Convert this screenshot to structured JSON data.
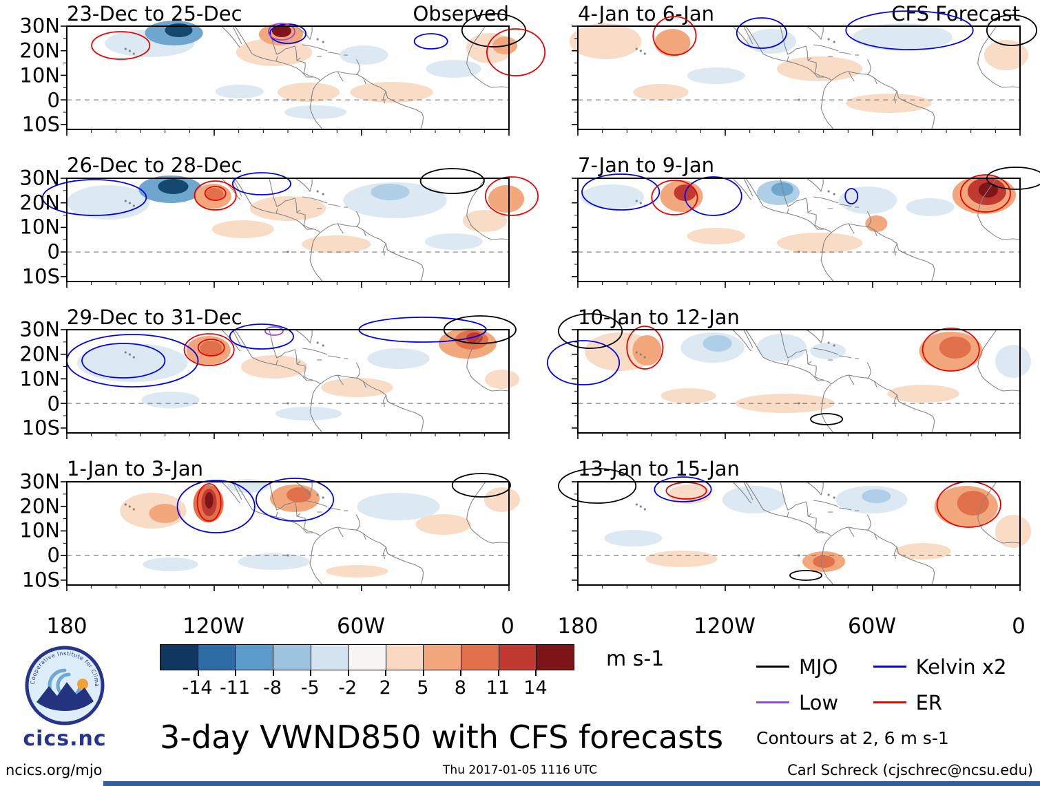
{
  "chart_data": {
    "type": "heatmap",
    "title": "3-day VWND850 with CFS forecasts",
    "units_label": "m s-1",
    "contours_note": "Contours at 2, 6 m s-1",
    "y_tick_labels": [
      "30N",
      "20N",
      "10N",
      "0",
      "10S"
    ],
    "x_tick_labels": [
      "180",
      "120W",
      "60W",
      "0"
    ],
    "palette": {
      "po": "#f8dcc6",
      "o": "#f2a87c",
      "mo": "#e0714b",
      "r": "#c03a31",
      "dr": "#7e1519",
      "pb": "#dce9f3",
      "lb": "#aecfe6",
      "mb": "#6ea6ce",
      "b": "#3c7cb0",
      "db": "#15486e"
    },
    "colorbar": {
      "tick_labels": [
        "-14",
        "-11",
        "-8",
        "-5",
        "-2",
        "2",
        "5",
        "8",
        "11",
        "14"
      ],
      "segment_colors": [
        "#10375f",
        "#2e6da4",
        "#5b9bc9",
        "#9cc4df",
        "#d4e5f1",
        "#f7f5f3",
        "#f9d9c1",
        "#f2a87c",
        "#e0714b",
        "#c03a31",
        "#7e1519"
      ]
    },
    "legend": [
      {
        "id": "mjo",
        "label": "MJO",
        "color": "#000000"
      },
      {
        "id": "low",
        "label": "Low",
        "color": "#9b45d6"
      },
      {
        "id": "kelvin",
        "label": "Kelvin x2",
        "color": "#0000ee"
      },
      {
        "id": "er",
        "label": "ER",
        "color": "#ee0000"
      }
    ],
    "panels": [
      {
        "label": "23-Dec to 25-Dec",
        "corner_label": "Observed",
        "blobs": [
          [
            120,
            25,
            65,
            20,
            "pb"
          ],
          [
            430,
            42,
            35,
            14,
            "pb"
          ],
          [
            250,
            95,
            35,
            10,
            "pb"
          ],
          [
            360,
            125,
            45,
            10,
            "pb"
          ],
          [
            560,
            62,
            40,
            13,
            "pb"
          ],
          [
            300,
            38,
            55,
            20,
            "po"
          ],
          [
            350,
            96,
            45,
            14,
            "po"
          ],
          [
            470,
            96,
            60,
            15,
            "po"
          ],
          [
            612,
            32,
            34,
            22,
            "po"
          ],
          [
            155,
            10,
            42,
            18,
            "mb"
          ],
          [
            162,
            6,
            20,
            10,
            "db"
          ],
          [
            310,
            12,
            32,
            16,
            "o"
          ],
          [
            634,
            28,
            18,
            13,
            "o"
          ],
          [
            311,
            7,
            14,
            9,
            "dr"
          ]
        ],
        "contours": [
          [
            78,
            28,
            42,
            20,
            "er"
          ],
          [
            320,
            11,
            26,
            14,
            "kelvin"
          ],
          [
            311,
            8,
            19,
            12,
            "low"
          ],
          [
            527,
            22,
            24,
            11,
            "kelvin"
          ],
          [
            618,
            6,
            46,
            24,
            "mjo"
          ],
          [
            650,
            38,
            42,
            34,
            "er"
          ]
        ]
      },
      {
        "label": "26-Dec to 28-Dec",
        "corner_label": "",
        "blobs": [
          [
            60,
            35,
            60,
            25,
            "pb"
          ],
          [
            475,
            32,
            75,
            26,
            "pb"
          ],
          [
            560,
            92,
            42,
            12,
            "pb"
          ],
          [
            320,
            44,
            55,
            18,
            "po"
          ],
          [
            255,
            74,
            45,
            13,
            "po"
          ],
          [
            605,
            62,
            32,
            16,
            "po"
          ],
          [
            390,
            96,
            50,
            13,
            "po"
          ],
          [
            150,
            16,
            46,
            20,
            "mb"
          ],
          [
            154,
            12,
            22,
            11,
            "db"
          ],
          [
            468,
            20,
            28,
            12,
            "lb"
          ],
          [
            212,
            26,
            26,
            18,
            "o"
          ],
          [
            636,
            30,
            26,
            20,
            "o"
          ],
          [
            214,
            23,
            13,
            9,
            "mo"
          ]
        ],
        "contours": [
          [
            40,
            28,
            75,
            26,
            "kelvin"
          ],
          [
            282,
            8,
            42,
            16,
            "kelvin"
          ],
          [
            215,
            25,
            30,
            21,
            "er"
          ],
          [
            215,
            22,
            15,
            10,
            "er"
          ],
          [
            558,
            4,
            46,
            18,
            "mjo"
          ],
          [
            644,
            26,
            38,
            28,
            "er"
          ]
        ]
      },
      {
        "label": "29-Dec to 31-Dec",
        "corner_label": "",
        "blobs": [
          [
            95,
            48,
            80,
            28,
            "pb"
          ],
          [
            480,
            42,
            45,
            15,
            "pb"
          ],
          [
            150,
            102,
            42,
            12,
            "pb"
          ],
          [
            350,
            122,
            48,
            10,
            "pb"
          ],
          [
            300,
            54,
            48,
            17,
            "po"
          ],
          [
            420,
            84,
            52,
            14,
            "po"
          ],
          [
            630,
            72,
            25,
            14,
            "po"
          ],
          [
            580,
            20,
            42,
            22,
            "o"
          ],
          [
            205,
            30,
            32,
            21,
            "o"
          ],
          [
            209,
            27,
            16,
            11,
            "mo"
          ],
          [
            586,
            15,
            24,
            14,
            "mo"
          ],
          [
            590,
            12,
            12,
            8,
            "r"
          ]
        ],
        "contours": [
          [
            95,
            45,
            95,
            38,
            "kelvin"
          ],
          [
            82,
            45,
            60,
            25,
            "kelvin"
          ],
          [
            282,
            10,
            46,
            18,
            "kelvin"
          ],
          [
            300,
            2,
            13,
            6,
            "low"
          ],
          [
            515,
            0,
            92,
            18,
            "kelvin"
          ],
          [
            206,
            29,
            36,
            23,
            "er"
          ],
          [
            209,
            26,
            19,
            12,
            "er"
          ],
          [
            598,
            0,
            52,
            20,
            "mjo"
          ]
        ]
      },
      {
        "label": "1-Jan to 3-Jan",
        "corner_label": "",
        "blobs": [
          [
            262,
            6,
            30,
            10,
            "pb"
          ],
          [
            480,
            36,
            60,
            20,
            "pb"
          ],
          [
            300,
            116,
            52,
            12,
            "pb"
          ],
          [
            150,
            120,
            40,
            10,
            "pb"
          ],
          [
            125,
            42,
            48,
            26,
            "po"
          ],
          [
            545,
            62,
            40,
            15,
            "po"
          ],
          [
            630,
            26,
            26,
            18,
            "po"
          ],
          [
            420,
            130,
            45,
            9,
            "po"
          ],
          [
            142,
            46,
            23,
            14,
            "o"
          ],
          [
            330,
            24,
            36,
            20,
            "o"
          ],
          [
            336,
            19,
            18,
            11,
            "mo"
          ],
          [
            205,
            32,
            22,
            27,
            "mo"
          ],
          [
            206,
            30,
            11,
            20,
            "r"
          ],
          [
            206,
            27,
            6,
            12,
            "dr"
          ]
        ],
        "contours": [
          [
            216,
            36,
            56,
            38,
            "kelvin"
          ],
          [
            330,
            26,
            56,
            31,
            "kelvin"
          ],
          [
            206,
            30,
            17,
            27,
            "er"
          ],
          [
            600,
            5,
            42,
            17,
            "mjo"
          ]
        ]
      },
      {
        "label": "4-Jan to 6-Jan",
        "corner_label": "CFS Forecast",
        "blobs": [
          [
            280,
            22,
            36,
            18,
            "pb"
          ],
          [
            470,
            16,
            72,
            20,
            "pb"
          ],
          [
            200,
            72,
            42,
            12,
            "pb"
          ],
          [
            40,
            22,
            52,
            26,
            "po"
          ],
          [
            620,
            42,
            32,
            22,
            "po"
          ],
          [
            350,
            62,
            62,
            18,
            "po"
          ],
          [
            450,
            112,
            62,
            14,
            "po"
          ],
          [
            120,
            96,
            40,
            12,
            "po"
          ],
          [
            137,
            24,
            26,
            20,
            "o"
          ]
        ],
        "contours": [
          [
            140,
            14,
            31,
            28,
            "er"
          ],
          [
            266,
            10,
            36,
            22,
            "kelvin"
          ],
          [
            480,
            6,
            92,
            28,
            "kelvin"
          ],
          [
            628,
            6,
            36,
            22,
            "mjo"
          ]
        ]
      },
      {
        "label": "7-Jan to 9-Jan",
        "corner_label": "",
        "blobs": [
          [
            50,
            27,
            46,
            18,
            "pb"
          ],
          [
            420,
            32,
            42,
            20,
            "pb"
          ],
          [
            510,
            42,
            35,
            13,
            "pb"
          ],
          [
            350,
            94,
            62,
            15,
            "po"
          ],
          [
            200,
            84,
            42,
            12,
            "po"
          ],
          [
            290,
            21,
            31,
            18,
            "lb"
          ],
          [
            296,
            16,
            16,
            10,
            "mb"
          ],
          [
            150,
            26,
            31,
            23,
            "o"
          ],
          [
            588,
            24,
            46,
            28,
            "o"
          ],
          [
            432,
            66,
            16,
            12,
            "o"
          ],
          [
            155,
            21,
            16,
            12,
            "r"
          ],
          [
            592,
            19,
            28,
            20,
            "r"
          ],
          [
            594,
            17,
            14,
            11,
            "dr"
          ]
        ],
        "contours": [
          [
            62,
            20,
            56,
            26,
            "kelvin"
          ],
          [
            196,
            26,
            41,
            28,
            "kelvin"
          ],
          [
            396,
            26,
            9,
            11,
            "kelvin"
          ],
          [
            140,
            28,
            33,
            25,
            "er"
          ],
          [
            590,
            22,
            36,
            27,
            "er"
          ],
          [
            634,
            0,
            42,
            16,
            "mjo"
          ]
        ]
      },
      {
        "label": "10-Jan to 12-Jan",
        "corner_label": "",
        "blobs": [
          [
            195,
            26,
            46,
            22,
            "pb"
          ],
          [
            295,
            26,
            36,
            20,
            "pb"
          ],
          [
            362,
            31,
            26,
            12,
            "pb"
          ],
          [
            630,
            46,
            26,
            24,
            "pb"
          ],
          [
            62,
            32,
            52,
            28,
            "po"
          ],
          [
            300,
            107,
            72,
            14,
            "po"
          ],
          [
            500,
            93,
            52,
            13,
            "po"
          ],
          [
            160,
            96,
            40,
            11,
            "po"
          ],
          [
            202,
            20,
            21,
            12,
            "lb"
          ],
          [
            100,
            30,
            21,
            22,
            "o"
          ],
          [
            540,
            31,
            46,
            28,
            "o"
          ],
          [
            546,
            26,
            23,
            16,
            "mo"
          ]
        ],
        "contours": [
          [
            18,
            2,
            46,
            25,
            "mjo"
          ],
          [
            8,
            48,
            52,
            32,
            "kelvin"
          ],
          [
            97,
            26,
            26,
            31,
            "er"
          ],
          [
            540,
            29,
            41,
            31,
            "er"
          ],
          [
            360,
            130,
            23,
            8,
            "mjo"
          ]
        ]
      },
      {
        "label": "13-Jan to 15-Jan",
        "corner_label": "",
        "blobs": [
          [
            255,
            26,
            46,
            20,
            "pb"
          ],
          [
            425,
            26,
            52,
            20,
            "pb"
          ],
          [
            80,
            82,
            42,
            12,
            "pb"
          ],
          [
            162,
            18,
            31,
            14,
            "po"
          ],
          [
            630,
            72,
            26,
            24,
            "po"
          ],
          [
            150,
            112,
            52,
            12,
            "po"
          ],
          [
            500,
            101,
            40,
            12,
            "po"
          ],
          [
            432,
            21,
            21,
            10,
            "lb"
          ],
          [
            562,
            36,
            46,
            30,
            "o"
          ],
          [
            356,
            116,
            31,
            15,
            "o"
          ],
          [
            572,
            31,
            23,
            18,
            "mo"
          ],
          [
            356,
            116,
            16,
            9,
            "mo"
          ]
        ],
        "contours": [
          [
            28,
            6,
            56,
            25,
            "mjo"
          ],
          [
            152,
            11,
            41,
            18,
            "kelvin"
          ],
          [
            157,
            13,
            29,
            12,
            "er"
          ],
          [
            566,
            33,
            46,
            33,
            "er"
          ],
          [
            330,
            136,
            23,
            7,
            "mjo"
          ]
        ]
      }
    ]
  },
  "logo": {
    "text": "cics.nc",
    "arc_text": "Cooperative Institute for Climate and Satellites"
  },
  "footer": {
    "site": "ncics.org/mjo",
    "timestamp": "Thu 2017-01-05 1116 UTC",
    "credit": "Carl Schreck (cjschrec@ncsu.edu)"
  }
}
